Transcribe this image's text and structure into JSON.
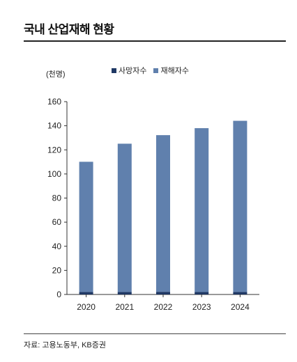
{
  "header": {
    "title": "국내 산업재해 현황"
  },
  "source": "자료: 고용노동부, KB증권",
  "chart_data": {
    "type": "bar",
    "stacked": true,
    "title": "국내 산업재해 현황",
    "unit_label": "(천명)",
    "categories": [
      "2020",
      "2021",
      "2022",
      "2023",
      "2024"
    ],
    "series": [
      {
        "name": "사망자수",
        "color": "#1f3864",
        "values": [
          2.1,
          2.1,
          2.2,
          2.0,
          2.1
        ]
      },
      {
        "name": "재해자수",
        "color": "#6080ad",
        "values": [
          108,
          123,
          130,
          136,
          142
        ]
      }
    ],
    "ylim": [
      0,
      160
    ],
    "yticks": [
      0,
      20,
      40,
      60,
      80,
      100,
      120,
      140,
      160
    ],
    "legend_position": "top-center",
    "grid": false
  }
}
